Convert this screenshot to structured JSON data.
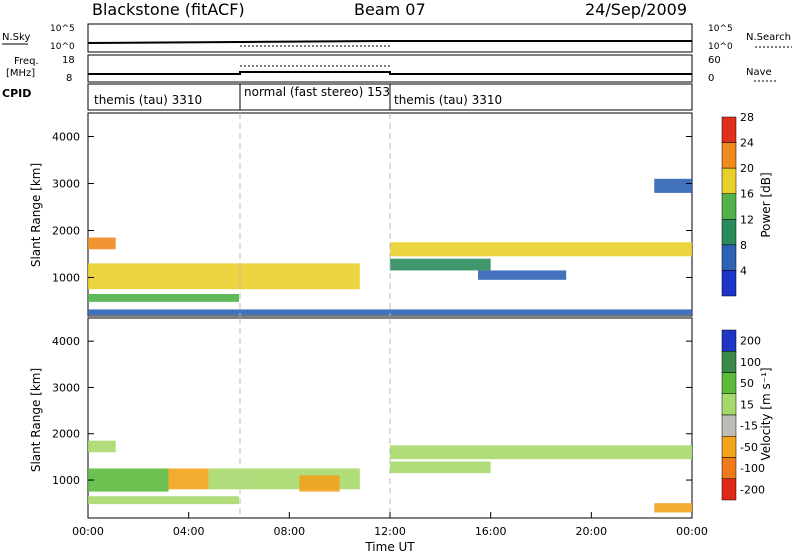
{
  "header": {
    "radar": "Blackstone (fitACF)",
    "beam": "Beam 07",
    "date": "24/Sep/2009"
  },
  "summary": {
    "nsky_label": "N.Sky",
    "nsearch_label": "N.Search",
    "freq_label_1": "Freq.",
    "freq_label_2": "[MHz]",
    "nave_label": "Nave",
    "cpid_label": "CPID",
    "left_top_ticks": [
      "10^5",
      "10^0"
    ],
    "right_top_ticks": [
      "10^5",
      "10^0"
    ],
    "left_freq_ticks": [
      "18",
      "8"
    ],
    "right_nave_ticks": [
      "60",
      "0"
    ],
    "cpid_segments": [
      {
        "label": "themis (tau) 3310",
        "start": 0,
        "end": 6
      },
      {
        "label": "normal (fast stereo) 153",
        "start": 6,
        "end": 12
      },
      {
        "label": "themis (tau) 3310",
        "start": 12,
        "end": 24
      }
    ]
  },
  "chart_data": [
    {
      "type": "heatmap",
      "panel": "power",
      "ylabel": "Slant Range [km]",
      "xlim": [
        0,
        24
      ],
      "ylim": [
        180,
        4500
      ],
      "yticks": [
        "1000",
        "2000",
        "3000",
        "4000"
      ],
      "colorbar": {
        "label": "Power [dB]",
        "ticks": [
          "4",
          "8",
          "12",
          "16",
          "20",
          "24",
          "28"
        ],
        "colors": [
          "#1c35c8",
          "#2c63b4",
          "#2b8c5b",
          "#50b248",
          "#e9cf2a",
          "#ef8a1e",
          "#e0301c"
        ]
      },
      "bands": [
        {
          "t0": 0,
          "t1": 1.1,
          "r0": 1600,
          "r1": 1850,
          "value": 22
        },
        {
          "t0": 0,
          "t1": 10.8,
          "r0": 750,
          "r1": 1300,
          "value": 21
        },
        {
          "t0": 0,
          "t1": 6,
          "r0": 480,
          "r1": 650,
          "value": 14
        },
        {
          "t0": 0,
          "t1": 24,
          "r0": 200,
          "r1": 320,
          "value": 8
        },
        {
          "t0": 12,
          "t1": 24,
          "r0": 1450,
          "r1": 1750,
          "value": 20
        },
        {
          "t0": 12,
          "t1": 16,
          "r0": 1150,
          "r1": 1400,
          "value": 12
        },
        {
          "t0": 15.5,
          "t1": 19,
          "r0": 950,
          "r1": 1150,
          "value": 8
        },
        {
          "t0": 22.5,
          "t1": 24,
          "r0": 2800,
          "r1": 3100,
          "value": 6
        }
      ]
    },
    {
      "type": "heatmap",
      "panel": "velocity",
      "ylabel": "Slant Range [km]",
      "xlabel": "Time UT",
      "xlim": [
        0,
        24
      ],
      "ylim": [
        180,
        4500
      ],
      "yticks": [
        "1000",
        "2000",
        "3000",
        "4000"
      ],
      "xticks": [
        "00:00",
        "04:00",
        "08:00",
        "12:00",
        "16:00",
        "20:00",
        "00:00"
      ],
      "colorbar": {
        "label": "Velocity [m s⁻¹]",
        "ticks": [
          "200",
          "100",
          "50",
          "15",
          "-15",
          "-50",
          "-100",
          "-200"
        ],
        "colors": [
          "#1f36c4",
          "#3a8a4a",
          "#5cba3d",
          "#a7d86c",
          "#bdbcb6",
          "#f3a21c",
          "#ef7a1a",
          "#e02818"
        ]
      },
      "bands": [
        {
          "t0": 0,
          "t1": 1.1,
          "r0": 1600,
          "r1": 1850,
          "value": 0
        },
        {
          "t0": 0,
          "t1": 3.2,
          "r0": 750,
          "r1": 1250,
          "value": 60
        },
        {
          "t0": 3.2,
          "t1": 4.8,
          "r0": 800,
          "r1": 1250,
          "value": -40
        },
        {
          "t0": 4.8,
          "t1": 10.8,
          "r0": 800,
          "r1": 1250,
          "value": 0
        },
        {
          "t0": 8.4,
          "t1": 10,
          "r0": 750,
          "r1": 1100,
          "value": -40
        },
        {
          "t0": 0,
          "t1": 6,
          "r0": 480,
          "r1": 650,
          "value": 0
        },
        {
          "t0": 12,
          "t1": 24,
          "r0": 1450,
          "r1": 1750,
          "value": 0
        },
        {
          "t0": 12,
          "t1": 16,
          "r0": 1150,
          "r1": 1400,
          "value": 0
        },
        {
          "t0": 22.5,
          "t1": 24,
          "r0": 300,
          "r1": 500,
          "value": -40
        }
      ]
    }
  ]
}
